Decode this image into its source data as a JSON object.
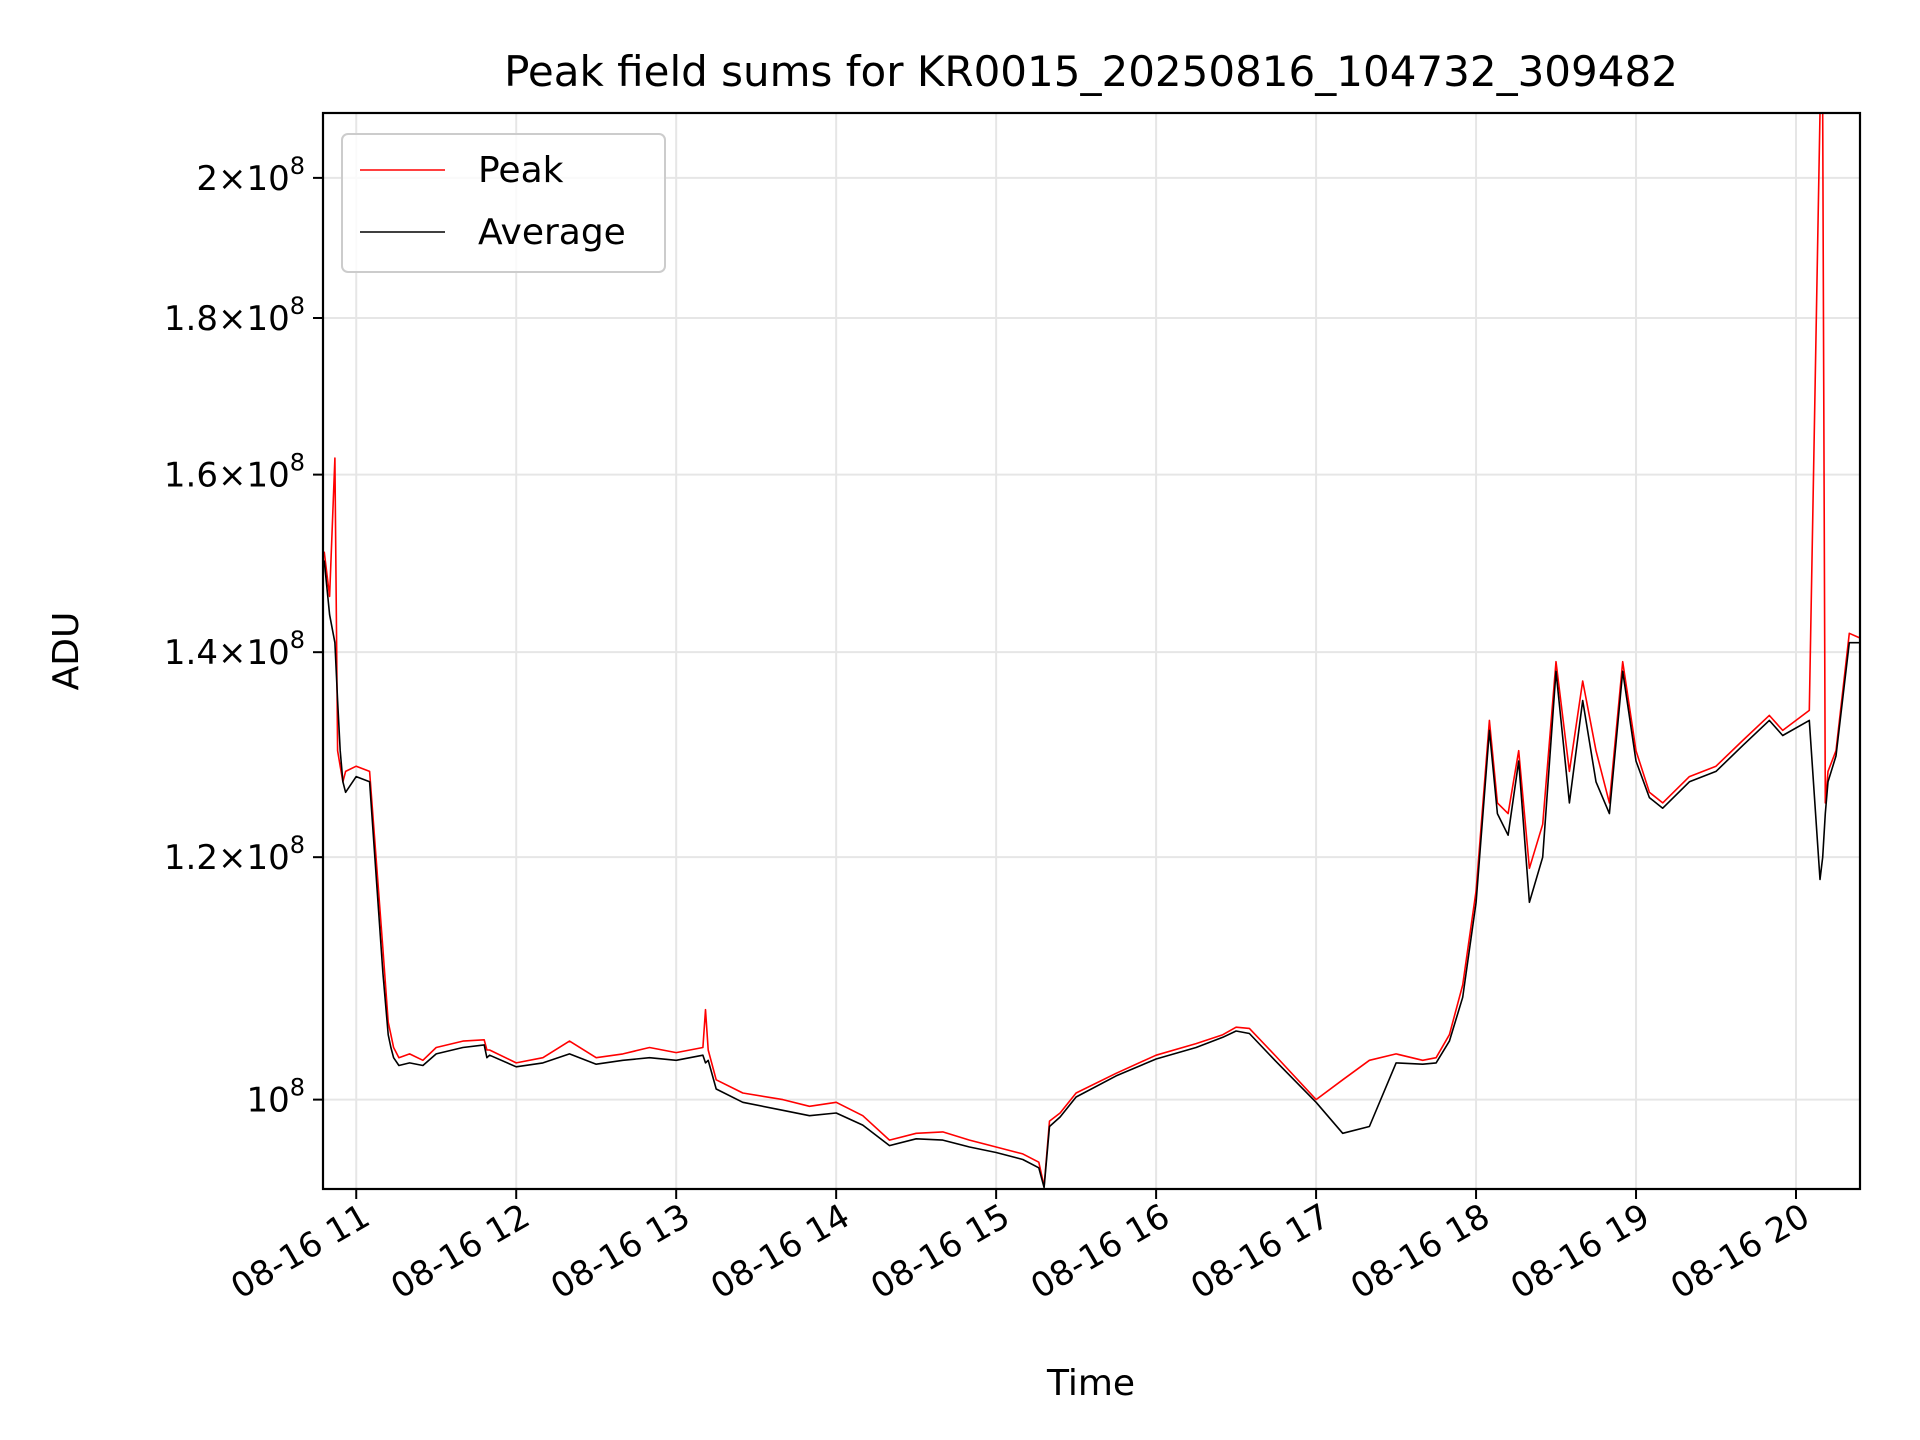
{
  "chart_data": {
    "type": "line",
    "title": "Peak field sums for KR0015_20250816_104732_309482",
    "xlabel": "Time",
    "ylabel": "ADU",
    "yscale": "log",
    "ylim": [
      93500000,
      210000000
    ],
    "xlim": [
      "2025-08-16T10:47:32",
      "2025-08-16T20:24:00"
    ],
    "grid": true,
    "legend_position": "upper-left",
    "x_ticks": [
      {
        "value": "2025-08-16T11:00",
        "label": "08-16 11"
      },
      {
        "value": "2025-08-16T12:00",
        "label": "08-16 12"
      },
      {
        "value": "2025-08-16T13:00",
        "label": "08-16 13"
      },
      {
        "value": "2025-08-16T14:00",
        "label": "08-16 14"
      },
      {
        "value": "2025-08-16T15:00",
        "label": "08-16 15"
      },
      {
        "value": "2025-08-16T16:00",
        "label": "08-16 16"
      },
      {
        "value": "2025-08-16T17:00",
        "label": "08-16 17"
      },
      {
        "value": "2025-08-16T18:00",
        "label": "08-16 18"
      },
      {
        "value": "2025-08-16T19:00",
        "label": "08-16 19"
      },
      {
        "value": "2025-08-16T20:00",
        "label": "08-16 20"
      }
    ],
    "y_ticks": [
      {
        "value": 100000000,
        "mantissa": "",
        "exp": "8"
      },
      {
        "value": 120000000,
        "mantissa": "1.2",
        "exp": "8"
      },
      {
        "value": 140000000,
        "mantissa": "1.4",
        "exp": "8"
      },
      {
        "value": 160000000,
        "mantissa": "1.6",
        "exp": "8"
      },
      {
        "value": 180000000,
        "mantissa": "1.8",
        "exp": "8"
      },
      {
        "value": 200000000,
        "mantissa": "2",
        "exp": "8"
      }
    ],
    "series": [
      {
        "name": "Peak",
        "color": "#ff0000",
        "x": [
          "2025-08-16T10:48",
          "2025-08-16T10:50",
          "2025-08-16T10:52",
          "2025-08-16T10:53",
          "2025-08-16T10:54",
          "2025-08-16T10:55",
          "2025-08-16T10:56",
          "2025-08-16T11:00",
          "2025-08-16T11:05",
          "2025-08-16T11:10",
          "2025-08-16T11:12",
          "2025-08-16T11:13",
          "2025-08-16T11:14",
          "2025-08-16T11:16",
          "2025-08-16T11:20",
          "2025-08-16T11:25",
          "2025-08-16T11:30",
          "2025-08-16T11:40",
          "2025-08-16T11:48",
          "2025-08-16T11:49",
          "2025-08-16T11:50",
          "2025-08-16T12:00",
          "2025-08-16T12:10",
          "2025-08-16T12:20",
          "2025-08-16T12:30",
          "2025-08-16T12:40",
          "2025-08-16T12:50",
          "2025-08-16T13:00",
          "2025-08-16T13:10",
          "2025-08-16T13:11",
          "2025-08-16T13:12",
          "2025-08-16T13:15",
          "2025-08-16T13:25",
          "2025-08-16T13:40",
          "2025-08-16T13:50",
          "2025-08-16T14:00",
          "2025-08-16T14:10",
          "2025-08-16T14:20",
          "2025-08-16T14:30",
          "2025-08-16T14:40",
          "2025-08-16T14:50",
          "2025-08-16T15:00",
          "2025-08-16T15:10",
          "2025-08-16T15:16",
          "2025-08-16T15:18",
          "2025-08-16T15:20",
          "2025-08-16T15:24",
          "2025-08-16T15:30",
          "2025-08-16T15:45",
          "2025-08-16T16:00",
          "2025-08-16T16:15",
          "2025-08-16T16:25",
          "2025-08-16T16:30",
          "2025-08-16T16:35",
          "2025-08-16T16:45",
          "2025-08-16T17:00",
          "2025-08-16T17:10",
          "2025-08-16T17:20",
          "2025-08-16T17:30",
          "2025-08-16T17:40",
          "2025-08-16T17:45",
          "2025-08-16T17:50",
          "2025-08-16T17:55",
          "2025-08-16T18:00",
          "2025-08-16T18:05",
          "2025-08-16T18:08",
          "2025-08-16T18:12",
          "2025-08-16T18:16",
          "2025-08-16T18:20",
          "2025-08-16T18:25",
          "2025-08-16T18:30",
          "2025-08-16T18:35",
          "2025-08-16T18:40",
          "2025-08-16T18:45",
          "2025-08-16T18:50",
          "2025-08-16T18:55",
          "2025-08-16T19:00",
          "2025-08-16T19:05",
          "2025-08-16T19:10",
          "2025-08-16T19:20",
          "2025-08-16T19:30",
          "2025-08-16T19:40",
          "2025-08-16T19:50",
          "2025-08-16T19:55",
          "2025-08-16T20:05",
          "2025-08-16T20:09",
          "2025-08-16T20:10",
          "2025-08-16T20:11",
          "2025-08-16T20:12",
          "2025-08-16T20:15",
          "2025-08-16T20:20",
          "2025-08-16T20:24"
        ],
        "values": [
          151000000,
          146000000,
          162000000,
          130000000,
          128500000,
          127000000,
          128000000,
          128500000,
          128000000,
          112000000,
          106000000,
          105000000,
          104000000,
          103200000,
          103500000,
          103000000,
          104000000,
          104500000,
          104600000,
          103800000,
          103800000,
          102800000,
          103200000,
          104500000,
          103200000,
          103500000,
          104000000,
          103600000,
          104000000,
          107000000,
          103800000,
          101500000,
          100500000,
          100000000,
          99500000,
          99800000,
          98800000,
          97000000,
          97500000,
          97600000,
          97000000,
          96500000,
          96000000,
          95400000,
          93700000,
          98400000,
          99000000,
          100500000,
          102000000,
          103400000,
          104300000,
          105000000,
          105600000,
          105500000,
          103300000,
          100000000,
          101500000,
          103000000,
          103500000,
          103000000,
          103200000,
          105000000,
          109000000,
          117000000,
          133000000,
          125000000,
          124000000,
          130000000,
          119000000,
          123000000,
          139000000,
          128000000,
          137000000,
          130000000,
          125000000,
          139000000,
          130000000,
          126000000,
          125000000,
          127500000,
          128500000,
          131000000,
          133500000,
          132000000,
          134000000,
          210000000,
          210000000,
          125000000,
          128000000,
          130000000,
          142000000,
          141500000
        ]
      },
      {
        "name": "Average",
        "color": "#000000",
        "x": [
          "2025-08-16T10:48",
          "2025-08-16T10:50",
          "2025-08-16T10:52",
          "2025-08-16T10:53",
          "2025-08-16T10:54",
          "2025-08-16T10:55",
          "2025-08-16T10:56",
          "2025-08-16T11:00",
          "2025-08-16T11:05",
          "2025-08-16T11:10",
          "2025-08-16T11:12",
          "2025-08-16T11:13",
          "2025-08-16T11:14",
          "2025-08-16T11:16",
          "2025-08-16T11:20",
          "2025-08-16T11:25",
          "2025-08-16T11:30",
          "2025-08-16T11:40",
          "2025-08-16T11:48",
          "2025-08-16T11:49",
          "2025-08-16T11:50",
          "2025-08-16T12:00",
          "2025-08-16T12:10",
          "2025-08-16T12:20",
          "2025-08-16T12:30",
          "2025-08-16T12:40",
          "2025-08-16T12:50",
          "2025-08-16T13:00",
          "2025-08-16T13:10",
          "2025-08-16T13:11",
          "2025-08-16T13:12",
          "2025-08-16T13:15",
          "2025-08-16T13:25",
          "2025-08-16T13:40",
          "2025-08-16T13:50",
          "2025-08-16T14:00",
          "2025-08-16T14:10",
          "2025-08-16T14:20",
          "2025-08-16T14:30",
          "2025-08-16T14:40",
          "2025-08-16T14:50",
          "2025-08-16T15:00",
          "2025-08-16T15:10",
          "2025-08-16T15:16",
          "2025-08-16T15:18",
          "2025-08-16T15:20",
          "2025-08-16T15:24",
          "2025-08-16T15:30",
          "2025-08-16T15:45",
          "2025-08-16T16:00",
          "2025-08-16T16:15",
          "2025-08-16T16:25",
          "2025-08-16T16:30",
          "2025-08-16T16:35",
          "2025-08-16T16:45",
          "2025-08-16T17:00",
          "2025-08-16T17:10",
          "2025-08-16T17:20",
          "2025-08-16T17:30",
          "2025-08-16T17:40",
          "2025-08-16T17:45",
          "2025-08-16T17:50",
          "2025-08-16T17:55",
          "2025-08-16T18:00",
          "2025-08-16T18:05",
          "2025-08-16T18:08",
          "2025-08-16T18:12",
          "2025-08-16T18:16",
          "2025-08-16T18:20",
          "2025-08-16T18:25",
          "2025-08-16T18:30",
          "2025-08-16T18:35",
          "2025-08-16T18:40",
          "2025-08-16T18:45",
          "2025-08-16T18:50",
          "2025-08-16T18:55",
          "2025-08-16T19:00",
          "2025-08-16T19:05",
          "2025-08-16T19:10",
          "2025-08-16T19:20",
          "2025-08-16T19:30",
          "2025-08-16T19:40",
          "2025-08-16T19:50",
          "2025-08-16T19:55",
          "2025-08-16T20:05",
          "2025-08-16T20:09",
          "2025-08-16T20:10",
          "2025-08-16T20:11",
          "2025-08-16T20:12",
          "2025-08-16T20:15",
          "2025-08-16T20:20",
          "2025-08-16T20:24"
        ],
        "values": [
          150000000,
          144000000,
          141000000,
          135000000,
          130000000,
          127000000,
          126000000,
          127500000,
          127000000,
          110000000,
          105000000,
          104000000,
          103200000,
          102600000,
          102800000,
          102600000,
          103500000,
          104000000,
          104200000,
          103200000,
          103400000,
          102500000,
          102800000,
          103500000,
          102700000,
          103000000,
          103200000,
          103000000,
          103400000,
          102800000,
          103000000,
          100800000,
          99800000,
          99200000,
          98800000,
          99000000,
          98100000,
          96600000,
          97100000,
          97000000,
          96500000,
          96100000,
          95600000,
          95000000,
          93600000,
          98000000,
          98700000,
          100200000,
          101800000,
          103100000,
          104000000,
          104800000,
          105300000,
          105100000,
          102900000,
          99800000,
          97500000,
          98000000,
          102800000,
          102700000,
          102800000,
          104500000,
          108000000,
          116000000,
          132000000,
          124000000,
          122000000,
          129000000,
          116000000,
          120000000,
          138000000,
          125000000,
          135000000,
          127000000,
          124000000,
          138000000,
          129000000,
          125500000,
          124500000,
          127000000,
          128000000,
          130500000,
          133000000,
          131500000,
          133000000,
          118000000,
          120000000,
          124000000,
          127000000,
          129500000,
          141000000,
          141000000
        ]
      }
    ]
  }
}
